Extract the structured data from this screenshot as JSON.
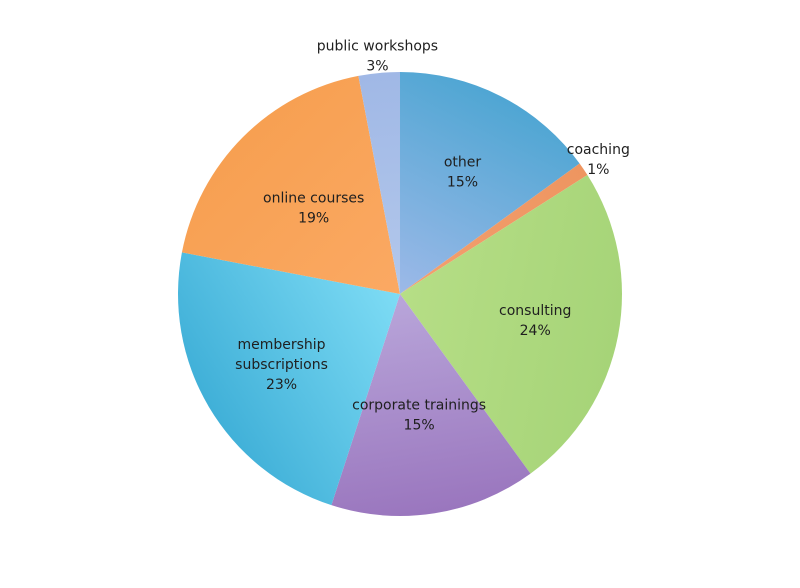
{
  "chart_data": {
    "type": "pie",
    "title": "",
    "slices": [
      {
        "label": "other",
        "value": 15,
        "display": "15%",
        "color": "#9DB9E8",
        "color_dark": "#4FA6D3"
      },
      {
        "label": "coaching",
        "value": 1,
        "display": "1%",
        "color": "#F3A070",
        "color_dark": "#EE9560"
      },
      {
        "label": "consulting",
        "value": 24,
        "display": "24%",
        "color": "#B6DE86",
        "color_dark": "#A6D478"
      },
      {
        "label": "corporate trainings",
        "value": 15,
        "display": "15%",
        "color": "#B9A6DA",
        "color_dark": "#9A76BE"
      },
      {
        "label": "membership subscriptions",
        "value": 23,
        "display": "23%",
        "color": "#7EDCF5",
        "color_dark": "#40B0D8"
      },
      {
        "label": "online courses",
        "value": 19,
        "display": "19%",
        "color": "#FBA963",
        "color_dark": "#F7A052"
      },
      {
        "label": "public workshops",
        "value": 3,
        "display": "3%",
        "color": "#B3C8EB",
        "color_dark": "#A0B8E6"
      }
    ],
    "start_angle_deg": 0,
    "direction": "clockwise",
    "legend": "none",
    "labels": "inside"
  }
}
